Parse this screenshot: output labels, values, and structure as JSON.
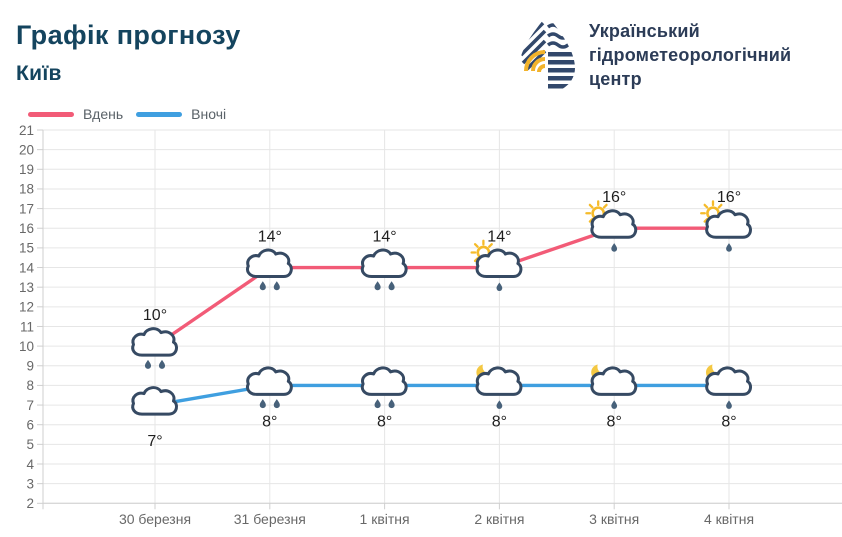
{
  "header": {
    "title": "Графік прогнозу",
    "subtitle": "Київ"
  },
  "logo": {
    "lines": [
      "Український",
      "гідрометеорологічний",
      "центр"
    ]
  },
  "legend": [
    {
      "label": "Вдень",
      "color": "#f25b77"
    },
    {
      "label": "Вночі",
      "color": "#3f9fe0"
    }
  ],
  "colors": {
    "title_text": "#14445e",
    "logo_text": "#2c3c57",
    "logo_navy": "#32486b",
    "logo_yellow": "#f2b32b",
    "grid_line": "#e6e6e6",
    "axis_line": "#cfcfcf",
    "axis_text": "#686868",
    "temp_text": "#1f1f1f",
    "cloud_outline": "#364a63",
    "raindrop": "#47617a",
    "sun": "#f5bb2a",
    "moon": "#f4c842"
  },
  "chart_data": {
    "type": "line",
    "title": "Графік прогнозу — Київ",
    "categories": [
      "30 березня",
      "31 березня",
      "1 квітня",
      "2 квітня",
      "3 квітня",
      "4 квітня"
    ],
    "series": [
      {
        "name": "Вдень",
        "color": "#f25b77",
        "values": [
          10,
          14,
          14,
          14,
          16,
          16
        ],
        "labels": [
          "10°",
          "14°",
          "14°",
          "14°",
          "16°",
          "16°"
        ],
        "label_position": "above",
        "icons": [
          "cloud-rain2",
          "cloud-rain2",
          "cloud-rain2",
          "sun-cloud-rain1",
          "sun-cloud-rain1",
          "sun-cloud-rain1"
        ]
      },
      {
        "name": "Вночі",
        "color": "#3f9fe0",
        "values": [
          7,
          8,
          8,
          8,
          8,
          8
        ],
        "labels": [
          "7°",
          "8°",
          "8°",
          "8°",
          "8°",
          "8°"
        ],
        "label_position": "below",
        "icons": [
          "cloud",
          "cloud-rain2",
          "cloud-rain2",
          "moon-cloud-rain1",
          "moon-cloud-rain1",
          "moon-cloud-rain1"
        ]
      }
    ],
    "xlabel": "",
    "ylabel": "",
    "ylim": [
      2,
      21
    ],
    "yticks": [
      21,
      20,
      19,
      18,
      17,
      16,
      15,
      14,
      13,
      12,
      11,
      10,
      9,
      8,
      7,
      6,
      5,
      4,
      3,
      2
    ],
    "grid": true,
    "legend_position": "top-left"
  }
}
